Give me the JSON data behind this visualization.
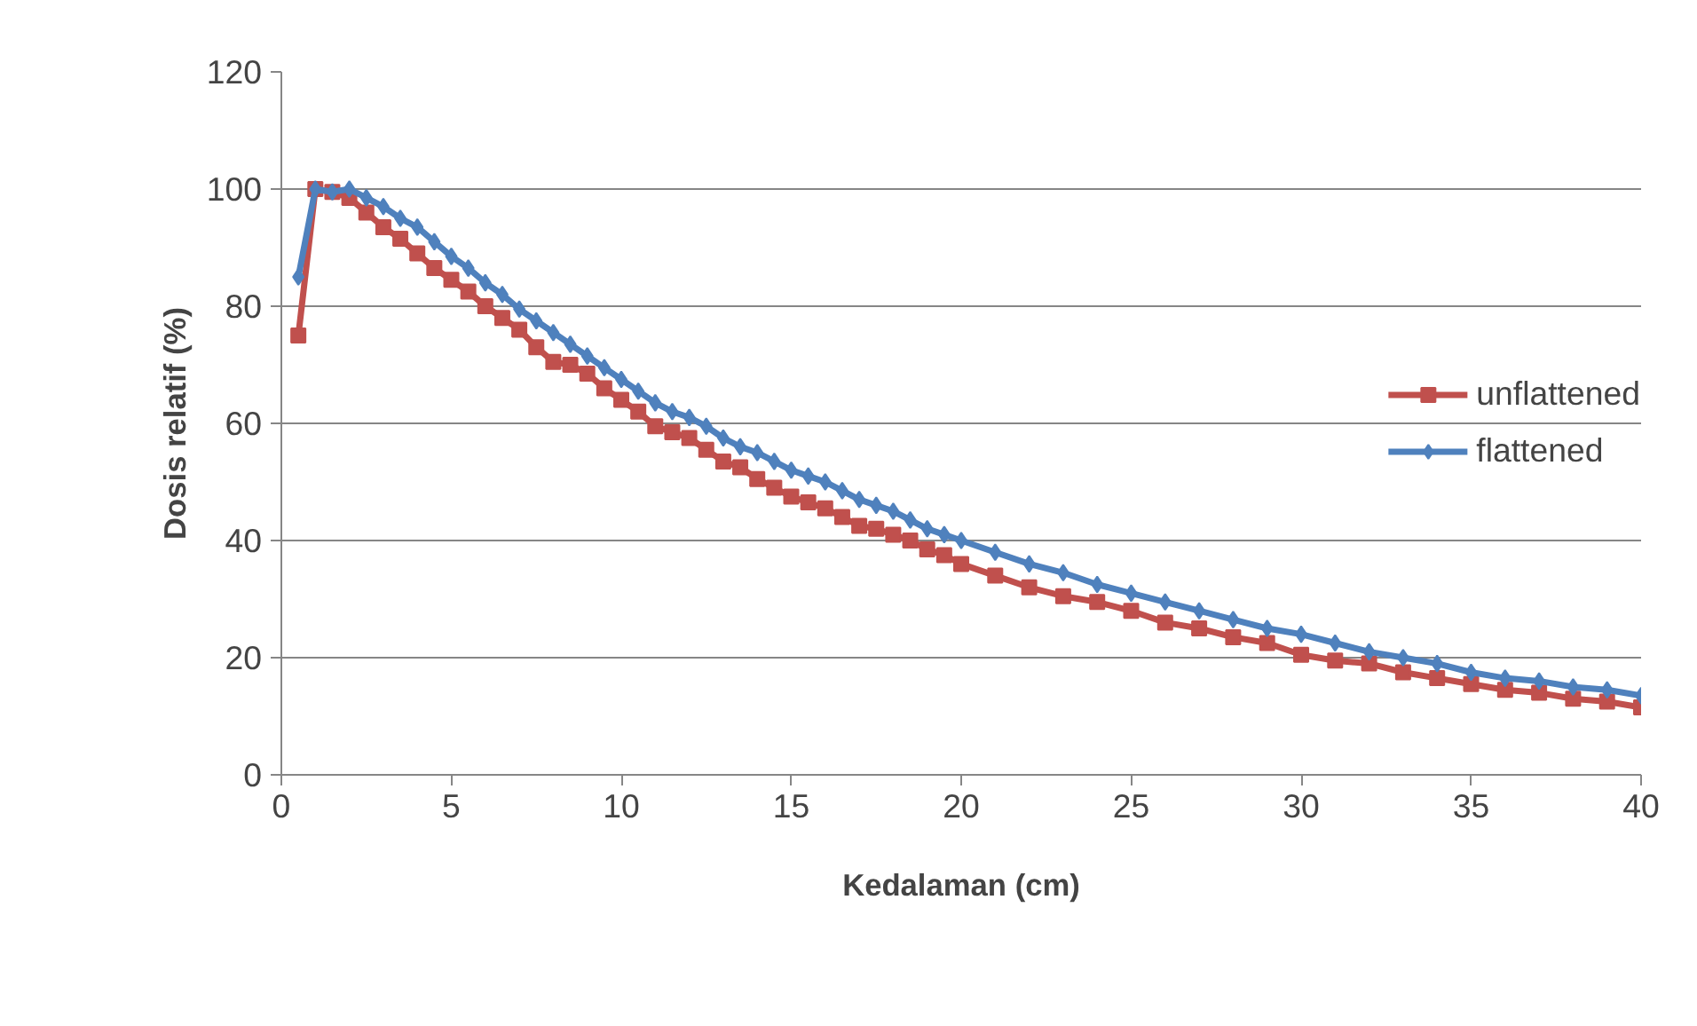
{
  "chart_data": {
    "type": "line",
    "xlabel": "Kedalaman (cm)",
    "ylabel": "Dosis relatif (%)",
    "xlim": [
      0,
      40
    ],
    "ylim": [
      0,
      120
    ],
    "xticks": [
      0,
      5,
      10,
      15,
      20,
      25,
      30,
      35,
      40
    ],
    "yticks": [
      0,
      20,
      40,
      60,
      80,
      100,
      120
    ],
    "grid": "y",
    "legend": "right",
    "line_style": "solid",
    "x": [
      0.5,
      1,
      1.5,
      2,
      2.5,
      3,
      3.5,
      4,
      4.5,
      5,
      5.5,
      6,
      6.5,
      7,
      7.5,
      8,
      8.5,
      9,
      9.5,
      10,
      10.5,
      11,
      11.5,
      12,
      12.5,
      13,
      13.5,
      14,
      14.5,
      15,
      15.5,
      16,
      16.5,
      17,
      17.5,
      18,
      18.5,
      19,
      19.5,
      20,
      21,
      22,
      23,
      24,
      25,
      26,
      27,
      28,
      29,
      30,
      31,
      32,
      33,
      34,
      35,
      36,
      37,
      38,
      39,
      40
    ],
    "series": [
      {
        "name": "unflattened",
        "color": "#c0504d",
        "marker": "square",
        "values": [
          75,
          100,
          99.5,
          98.5,
          96,
          93.5,
          91.5,
          89,
          86.5,
          84.5,
          82.5,
          80,
          78,
          76,
          73,
          70.5,
          70,
          68.5,
          66,
          64,
          62,
          59.5,
          58.5,
          57.5,
          55.5,
          53.5,
          52.5,
          50.5,
          49,
          47.5,
          46.5,
          45.5,
          44,
          42.5,
          42,
          41,
          40,
          38.5,
          37.5,
          36,
          34,
          32,
          30.5,
          29.5,
          28,
          26,
          25,
          23.5,
          22.5,
          20.5,
          19.5,
          19,
          17.5,
          16.5,
          15.5,
          14.5,
          14,
          13,
          12.5,
          11.5
        ]
      },
      {
        "name": "flattened",
        "color": "#4f81bd",
        "marker": "diamond",
        "values": [
          85,
          100,
          99.5,
          100,
          98.5,
          97,
          95,
          93.5,
          91,
          88.5,
          86.5,
          84,
          82,
          79.5,
          77.5,
          75.5,
          73.5,
          71.5,
          69.5,
          67.5,
          65.5,
          63.5,
          62,
          61,
          59.5,
          57.5,
          56,
          55,
          53.5,
          52,
          51,
          50,
          48.5,
          47,
          46,
          45,
          43.5,
          42,
          41,
          40,
          38,
          36,
          34.5,
          32.5,
          31,
          29.5,
          28,
          26.5,
          25,
          24,
          22.5,
          21,
          20,
          19,
          17.5,
          16.5,
          16,
          15,
          14.5,
          13.5
        ]
      }
    ]
  }
}
